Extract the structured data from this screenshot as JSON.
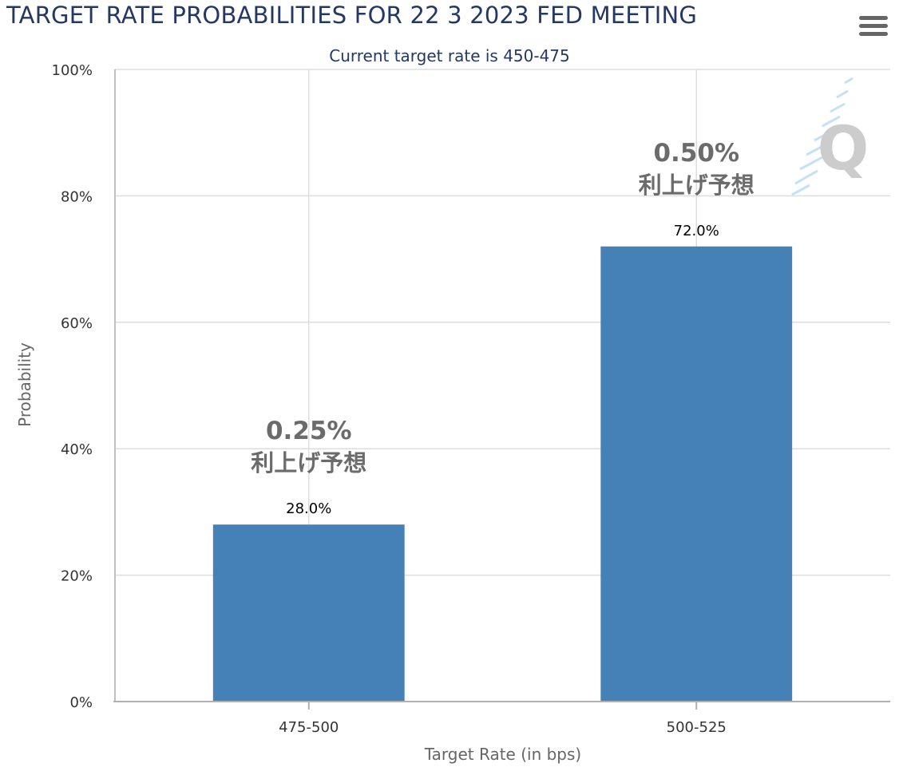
{
  "chart_data": {
    "type": "bar",
    "title": "TARGET RATE PROBABILITIES FOR 22 3 2023 FED MEETING",
    "subtitle": "Current target rate is 450-475",
    "xlabel": "Target Rate (in bps)",
    "ylabel": "Probability",
    "categories": [
      "475-500",
      "500-525"
    ],
    "values": [
      28.0,
      72.0
    ],
    "data_labels": [
      "28.0%",
      "72.0%"
    ],
    "ylim": [
      0,
      100
    ],
    "yticks": [
      0,
      20,
      40,
      60,
      80,
      100
    ],
    "ytick_labels": [
      "0%",
      "20%",
      "40%",
      "60%",
      "80%",
      "100%"
    ],
    "grid": true,
    "bar_color": "#4580b7",
    "annotations": [
      {
        "category": "475-500",
        "line1": "0.25%",
        "line2": "利上げ予想"
      },
      {
        "category": "500-525",
        "line1": "0.50%",
        "line2": "利上げ予想"
      }
    ]
  },
  "ui": {
    "menu_icon": "hamburger-icon",
    "watermark_icon": "q-logo-watermark",
    "title_color": "#253864"
  }
}
